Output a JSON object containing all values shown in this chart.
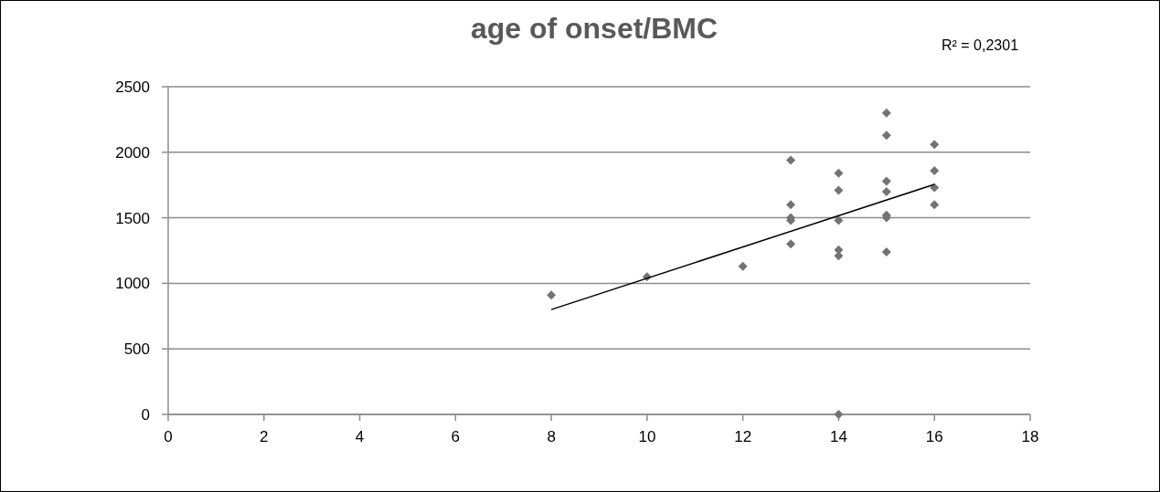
{
  "chart_data": {
    "type": "scatter",
    "title": "age of onset/BMC",
    "annotations": [
      "R² = 0,2301"
    ],
    "xlim": [
      0,
      18
    ],
    "xticks": [
      0,
      2,
      4,
      6,
      8,
      10,
      12,
      14,
      16,
      18
    ],
    "ylim": [
      0,
      2500
    ],
    "yticks": [
      0,
      500,
      1000,
      1500,
      2000,
      2500
    ],
    "grid": "y",
    "series": [
      {
        "color": "#737373",
        "marker": "diamond",
        "x": [
          8,
          10,
          12,
          13,
          13,
          13,
          13,
          13,
          14,
          14,
          14,
          14,
          14,
          14,
          15,
          15,
          15,
          15,
          15,
          15,
          15,
          16,
          16,
          16,
          16
        ],
        "values": [
          910,
          1050,
          1130,
          1940,
          1600,
          1500,
          1480,
          1300,
          1840,
          1710,
          1480,
          1255,
          1210,
          0,
          2300,
          2130,
          1780,
          1700,
          1520,
          1500,
          1240,
          2060,
          1860,
          1730,
          1600
        ]
      },
      {
        "type": "line",
        "color": "#000000",
        "marker": "none",
        "x": [
          8,
          16
        ],
        "values": [
          800,
          1755
        ]
      }
    ]
  }
}
